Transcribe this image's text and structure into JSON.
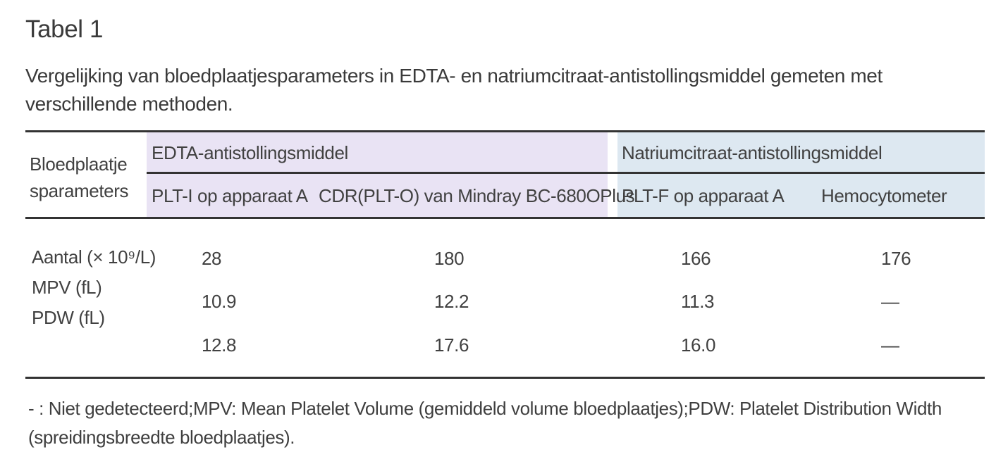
{
  "page": {
    "title": "Tabel 1",
    "subtitle": "Vergelijking van bloedplaatjesparameters in EDTA- en natriumcitraat-antistollingsmiddel gemeten met verschillende methoden."
  },
  "colors": {
    "edta_group_bg": "#e9e3f4",
    "citrate_group_bg": "#dde8f1",
    "rule_line": "#333333",
    "text": "#3f3f3f"
  },
  "table": {
    "row_header": {
      "line1": "Bloedplaatje",
      "line2": "sparameters"
    },
    "groups": [
      {
        "label": "EDTA-antistollingsmiddel",
        "columns": [
          "PLT-I op apparaat A",
          "CDR(PLT-O) van Mindray BC-680OPlus"
        ]
      },
      {
        "label": "Natriumcitraat-antistollingsmiddel",
        "columns": [
          "PLT-F op apparaat A",
          "Hemocytometer"
        ]
      }
    ],
    "row_labels": [
      "Aantal (× 10⁹/L)",
      "MPV (fL)",
      "PDW (fL)"
    ],
    "rows": [
      [
        "28",
        "180",
        "166",
        "176"
      ],
      [
        "10.9",
        "12.2",
        "11.3",
        "—"
      ],
      [
        "12.8",
        "17.6",
        "16.0",
        "—"
      ]
    ]
  },
  "footnote": "- :  Niet gedetecteerd;MPV: Mean Platelet Volume (gemiddeld volume bloedplaatjes);PDW: Platelet Distribution Width (spreidingsbreedte bloedplaatjes)."
}
